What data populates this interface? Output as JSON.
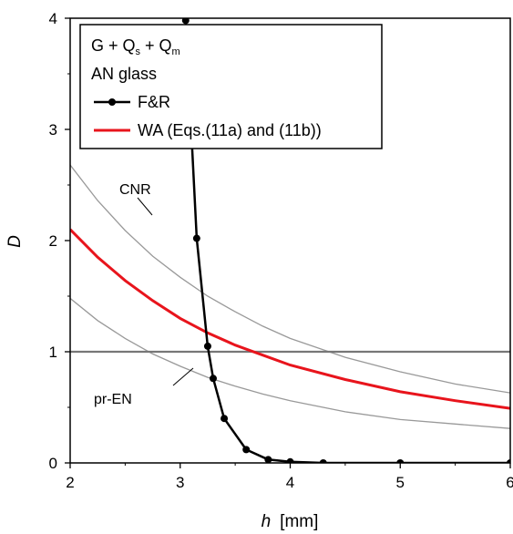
{
  "chart_data": {
    "type": "line",
    "xlabel": {
      "var": "h",
      "unit": "[mm]"
    },
    "ylabel": "D",
    "xlim": [
      2,
      6
    ],
    "ylim": [
      0,
      4
    ],
    "x_ticks": [
      "2",
      "3",
      "4",
      "5",
      "6"
    ],
    "y_ticks": [
      "0",
      "1",
      "2",
      "3",
      "4"
    ],
    "grid": false,
    "legend_position": "top-left",
    "legend": {
      "line1": {
        "a": "G + Q",
        "s_sub": "s",
        "b": " + Q",
        "m_sub": "m"
      },
      "line2": "AN glass"
    },
    "series": [
      {
        "name": "F&R",
        "color": "#000000",
        "marker": "circle",
        "x": [
          3.05,
          3.15,
          3.25,
          3.3,
          3.4,
          3.6,
          3.8,
          4.0,
          4.3,
          5.0,
          6.0
        ],
        "y": [
          3.98,
          2.02,
          1.05,
          0.76,
          0.4,
          0.12,
          0.03,
          0.01,
          0.0,
          0.0,
          0.0
        ]
      },
      {
        "name": "WA (Eqs.(11a) and (11b))",
        "color": "#e8141c",
        "x": [
          2.0,
          2.25,
          2.5,
          2.75,
          3.0,
          3.25,
          3.5,
          3.75,
          4.0,
          4.5,
          5.0,
          5.5,
          6.0
        ],
        "y": [
          2.1,
          1.85,
          1.64,
          1.46,
          1.3,
          1.17,
          1.06,
          0.97,
          0.88,
          0.75,
          0.64,
          0.56,
          0.49
        ]
      }
    ],
    "reference_curves": [
      {
        "label": "CNR",
        "color": "#999999",
        "x": [
          2.0,
          2.25,
          2.5,
          2.75,
          3.0,
          3.25,
          3.5,
          3.75,
          4.0,
          4.5,
          5.0,
          5.5,
          6.0
        ],
        "y": [
          2.68,
          2.36,
          2.09,
          1.86,
          1.67,
          1.5,
          1.36,
          1.23,
          1.12,
          0.95,
          0.82,
          0.71,
          0.63
        ]
      },
      {
        "label": "pr-EN",
        "color": "#999999",
        "x": [
          2.0,
          2.25,
          2.5,
          2.75,
          3.0,
          3.25,
          3.5,
          3.75,
          4.0,
          4.5,
          5.0,
          5.5,
          6.0
        ],
        "y": [
          1.48,
          1.28,
          1.12,
          0.98,
          0.87,
          0.77,
          0.69,
          0.62,
          0.56,
          0.46,
          0.39,
          0.35,
          0.31
        ]
      }
    ],
    "reference_line": {
      "y": 1,
      "color": "#777777"
    }
  }
}
